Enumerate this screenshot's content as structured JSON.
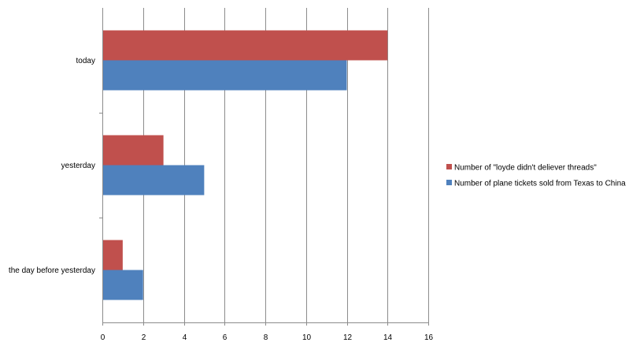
{
  "chart_data": {
    "type": "bar",
    "orientation": "horizontal",
    "title": "",
    "xlabel": "",
    "ylabel": "",
    "categories": [
      "today",
      "yesterday",
      "the day before yesterday"
    ],
    "series": [
      {
        "name": "Number of \"loyde didn't deliever threads\"",
        "color": "#c0504d",
        "values": [
          14,
          3,
          1
        ]
      },
      {
        "name": "Number of plane tickets sold from Texas to China",
        "color": "#4f81bd",
        "values": [
          12,
          5,
          2
        ]
      }
    ],
    "xlim": [
      0,
      16
    ],
    "x_ticks": [
      "0",
      "2",
      "4",
      "6",
      "8",
      "10",
      "12",
      "14",
      "16"
    ],
    "grid": "vertical",
    "legend_position": "right"
  }
}
